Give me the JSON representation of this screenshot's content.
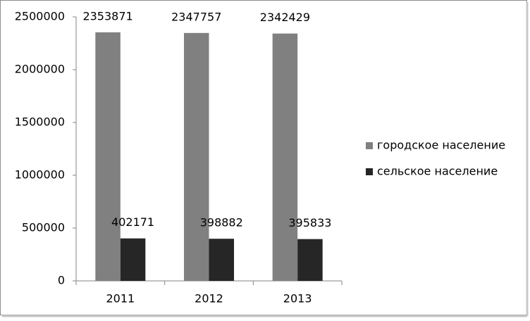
{
  "chart_data": {
    "type": "bar",
    "categories": [
      "2011",
      "2012",
      "2013"
    ],
    "series": [
      {
        "name": "городское население",
        "color": "#808080",
        "values": [
          2353871,
          2347757,
          2342429
        ]
      },
      {
        "name": "сельское население",
        "color": "#262626",
        "values": [
          402171,
          398882,
          395833
        ]
      }
    ],
    "ylim": [
      0,
      2500000
    ],
    "yticks": [
      0,
      500000,
      1000000,
      1500000,
      2000000,
      2500000
    ],
    "grid": false,
    "legend": "right",
    "data_labels": true
  }
}
